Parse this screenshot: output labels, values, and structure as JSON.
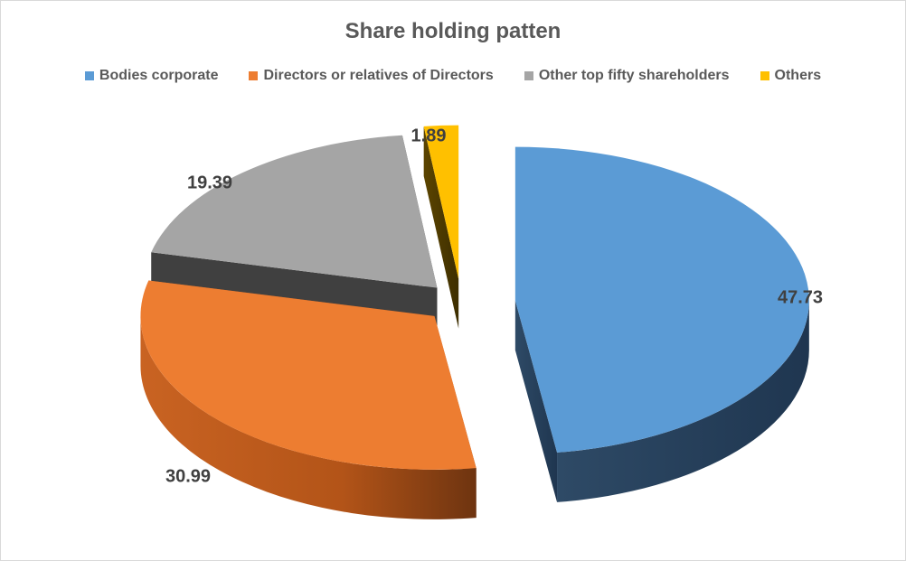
{
  "chart_data": {
    "type": "pie",
    "title": "Share holding patten",
    "legend_position": "top",
    "exploded": true,
    "three_d": true,
    "categories": [
      "Bodies corporate",
      "Directors or relatives of Directors",
      "Other top fifty shareholders",
      "Others"
    ],
    "values": [
      47.73,
      30.99,
      19.39,
      1.89
    ],
    "data_labels": [
      "47.73",
      "30.99",
      "19.39",
      "1.89"
    ],
    "colors": [
      "#5b9bd5",
      "#ed7d31",
      "#a5a5a5",
      "#ffc000"
    ]
  }
}
